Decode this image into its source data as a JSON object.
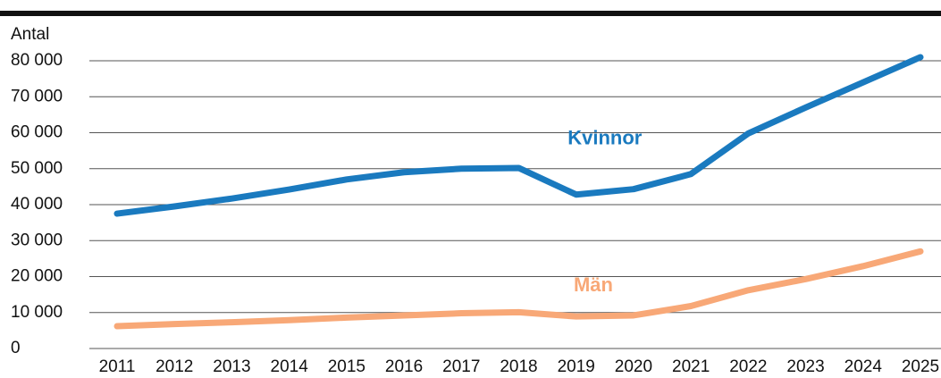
{
  "chart_data": {
    "type": "line",
    "y_label": "Antal",
    "categories": [
      "2011",
      "2012",
      "2013",
      "2014",
      "2015",
      "2016",
      "2017",
      "2018",
      "2019",
      "2020",
      "2021",
      "2022",
      "2023",
      "2024",
      "2025"
    ],
    "series": [
      {
        "name": "Kvinnor",
        "color": "#1a7abf",
        "values": [
          37500,
          39500,
          41700,
          44200,
          47000,
          49000,
          50000,
          50200,
          42800,
          44300,
          48500,
          59800,
          67000,
          74000,
          81000
        ]
      },
      {
        "name": "Män",
        "color": "#f8a877",
        "values": [
          6200,
          6800,
          7300,
          7900,
          8600,
          9200,
          9800,
          10100,
          8900,
          9200,
          11800,
          16200,
          19300,
          22900,
          27000
        ]
      }
    ],
    "ylim": [
      0,
      80000
    ],
    "yticks": [
      0,
      {
        "value": 10000,
        "label": "10 000"
      },
      {
        "value": 20000,
        "label": "20 000"
      },
      {
        "value": 30000,
        "label": "30 000"
      },
      {
        "value": 40000,
        "label": "40 000"
      },
      {
        "value": 50000,
        "label": "50 000"
      },
      {
        "value": 60000,
        "label": "60 000"
      },
      {
        "value": 70000,
        "label": "70 000"
      },
      {
        "value": 80000,
        "label": "80 000"
      }
    ],
    "grid": true
  }
}
